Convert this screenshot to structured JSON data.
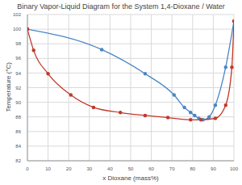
{
  "chart_data": {
    "type": "line",
    "title": "Binary Vapor-Liquid Diagram for the System 1,4-Dioxane / Water",
    "x_label": "x Dioxane (mass%)",
    "y_label": "Temperature (°C)",
    "xlim": [
      0,
      100
    ],
    "xticks": [
      0,
      10,
      20,
      30,
      40,
      50,
      60,
      70,
      80,
      90,
      100
    ],
    "ylim": [
      82,
      102
    ],
    "yticks": [
      82,
      84,
      86,
      88,
      90,
      92,
      94,
      96,
      98,
      100,
      102
    ],
    "grid": true,
    "series": [
      {
        "color": "#4a86c5",
        "marker": "circle",
        "line_style": "solid",
        "x": [
          0,
          36,
          57,
          71,
          76,
          79,
          81,
          83,
          85,
          88,
          91,
          96,
          100
        ],
        "values": [
          100,
          97.2,
          93.9,
          91.0,
          89.3,
          88.6,
          88.2,
          87.8,
          87.6,
          88.0,
          89.6,
          94.8,
          101.1
        ]
      },
      {
        "color": "#c0392b",
        "marker": "circle",
        "line_style": "solid",
        "x": [
          0,
          3,
          10,
          21,
          32,
          45,
          57,
          68,
          79,
          84,
          91,
          96,
          99,
          100
        ],
        "values": [
          100,
          97.1,
          93.9,
          91.0,
          89.3,
          88.6,
          88.2,
          87.9,
          87.6,
          87.6,
          87.8,
          89.6,
          94.8,
          101.1
        ]
      }
    ]
  }
}
